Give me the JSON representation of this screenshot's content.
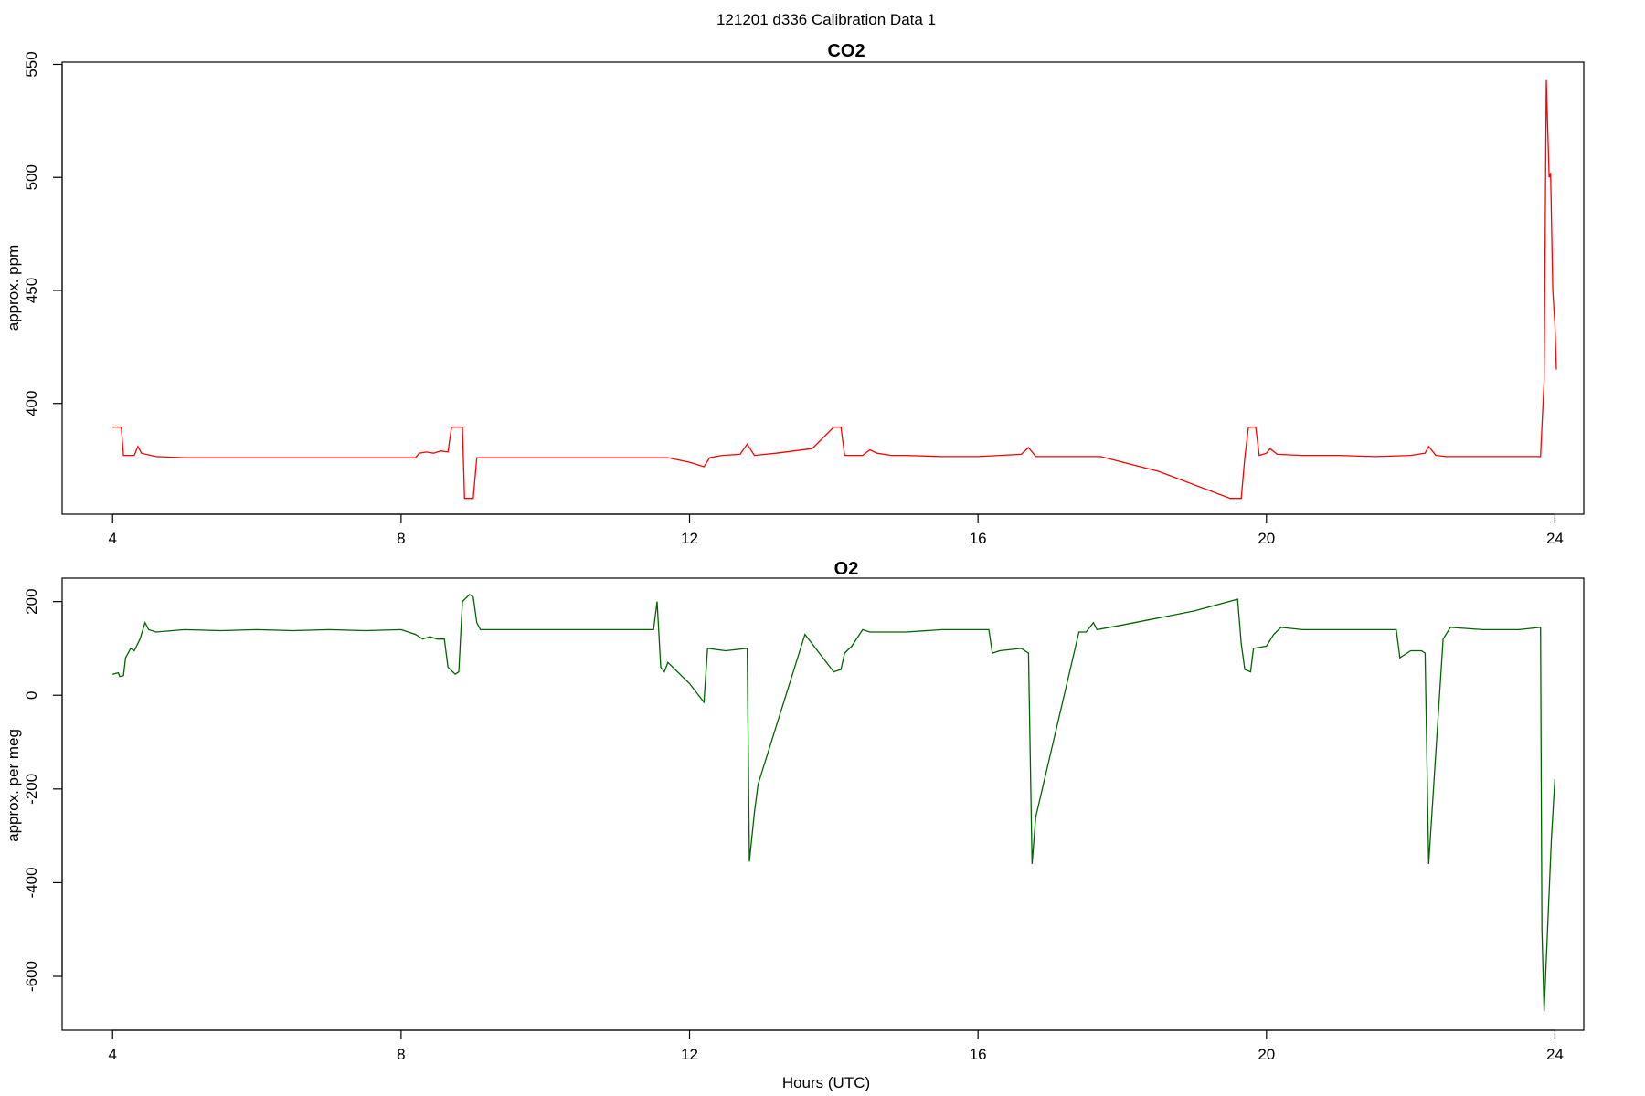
{
  "figure": {
    "title": "121201   d336   Calibration Data 1"
  },
  "chart_data": [
    {
      "type": "line",
      "title": "CO2",
      "xlabel": "",
      "ylabel": "approx. ppm",
      "xlim": [
        3.3,
        24.4
      ],
      "ylim": [
        351,
        551
      ],
      "xticks": [
        4,
        8,
        12,
        16,
        20,
        24
      ],
      "yticks": [
        400,
        450,
        500,
        550
      ],
      "grid": false,
      "series": [
        {
          "color": "#ff0000",
          "points": [
            [
              4.0,
              389.5
            ],
            [
              4.12,
              389.5
            ],
            [
              4.15,
              377
            ],
            [
              4.3,
              377
            ],
            [
              4.35,
              381
            ],
            [
              4.4,
              378
            ],
            [
              4.6,
              376.5
            ],
            [
              5.0,
              376
            ],
            [
              6.0,
              376
            ],
            [
              7.0,
              376
            ],
            [
              8.0,
              376
            ],
            [
              8.2,
              376
            ],
            [
              8.25,
              378
            ],
            [
              8.35,
              378.5
            ],
            [
              8.45,
              378
            ],
            [
              8.55,
              379
            ],
            [
              8.65,
              378.5
            ],
            [
              8.7,
              389.5
            ],
            [
              8.85,
              389.5
            ],
            [
              8.88,
              358
            ],
            [
              9.0,
              358
            ],
            [
              9.05,
              376
            ],
            [
              9.5,
              376
            ],
            [
              10.5,
              376
            ],
            [
              11.5,
              376
            ],
            [
              11.7,
              376
            ],
            [
              12.0,
              374
            ],
            [
              12.2,
              372
            ],
            [
              12.28,
              376
            ],
            [
              12.45,
              377
            ],
            [
              12.7,
              377.5
            ],
            [
              12.8,
              382
            ],
            [
              12.9,
              377
            ],
            [
              13.2,
              378
            ],
            [
              13.7,
              380
            ],
            [
              14.0,
              389.5
            ],
            [
              14.1,
              389.5
            ],
            [
              14.15,
              377
            ],
            [
              14.4,
              377
            ],
            [
              14.5,
              379.5
            ],
            [
              14.6,
              378
            ],
            [
              14.8,
              377
            ],
            [
              15.0,
              377
            ],
            [
              15.5,
              376.5
            ],
            [
              16.0,
              376.5
            ],
            [
              16.3,
              377
            ],
            [
              16.6,
              377.5
            ],
            [
              16.7,
              380.5
            ],
            [
              16.8,
              376.5
            ],
            [
              17.0,
              376.5
            ],
            [
              17.7,
              376.5
            ],
            [
              18.5,
              370
            ],
            [
              19.5,
              358
            ],
            [
              19.65,
              358
            ],
            [
              19.7,
              376
            ],
            [
              19.75,
              389.5
            ],
            [
              19.85,
              389.5
            ],
            [
              19.9,
              377
            ],
            [
              20.0,
              378
            ],
            [
              20.05,
              380
            ],
            [
              20.15,
              377.5
            ],
            [
              20.5,
              377
            ],
            [
              21.0,
              377
            ],
            [
              21.5,
              376.5
            ],
            [
              22.0,
              377
            ],
            [
              22.2,
              378
            ],
            [
              22.25,
              381
            ],
            [
              22.35,
              377
            ],
            [
              22.5,
              376.5
            ],
            [
              23.0,
              376.5
            ],
            [
              23.5,
              376.5
            ],
            [
              23.8,
              376.5
            ],
            [
              23.85,
              410
            ],
            [
              23.88,
              543
            ],
            [
              23.92,
              500
            ],
            [
              23.94,
              502
            ],
            [
              23.97,
              450
            ],
            [
              24.0,
              435
            ],
            [
              24.02,
              415
            ]
          ]
        }
      ]
    },
    {
      "type": "line",
      "title": "O2",
      "xlabel": "Hours (UTC)",
      "ylabel": "approx. per meg",
      "xlim": [
        3.3,
        24.4
      ],
      "ylim": [
        -715,
        250
      ],
      "xticks": [
        4,
        8,
        12,
        16,
        20,
        24
      ],
      "yticks": [
        200,
        0,
        -200,
        -400,
        -600
      ],
      "grid": false,
      "series": [
        {
          "color": "#006400",
          "points": [
            [
              4.0,
              45
            ],
            [
              4.08,
              48
            ],
            [
              4.1,
              40
            ],
            [
              4.15,
              42
            ],
            [
              4.18,
              80
            ],
            [
              4.25,
              100
            ],
            [
              4.3,
              95
            ],
            [
              4.38,
              120
            ],
            [
              4.45,
              155
            ],
            [
              4.5,
              140
            ],
            [
              4.6,
              135
            ],
            [
              5.0,
              140
            ],
            [
              5.5,
              138
            ],
            [
              6.0,
              140
            ],
            [
              6.5,
              138
            ],
            [
              7.0,
              140
            ],
            [
              7.5,
              138
            ],
            [
              8.0,
              140
            ],
            [
              8.2,
              130
            ],
            [
              8.3,
              120
            ],
            [
              8.4,
              125
            ],
            [
              8.5,
              120
            ],
            [
              8.6,
              120
            ],
            [
              8.65,
              60
            ],
            [
              8.75,
              45
            ],
            [
              8.8,
              50
            ],
            [
              8.85,
              200
            ],
            [
              8.95,
              215
            ],
            [
              9.0,
              210
            ],
            [
              9.05,
              155
            ],
            [
              9.1,
              140
            ],
            [
              9.5,
              140
            ],
            [
              10.0,
              140
            ],
            [
              10.5,
              140
            ],
            [
              11.0,
              140
            ],
            [
              11.5,
              140
            ],
            [
              11.55,
              200
            ],
            [
              11.6,
              60
            ],
            [
              11.65,
              50
            ],
            [
              11.7,
              70
            ],
            [
              12.0,
              25
            ],
            [
              12.2,
              -15
            ],
            [
              12.25,
              100
            ],
            [
              12.5,
              95
            ],
            [
              12.8,
              100
            ],
            [
              12.83,
              -355
            ],
            [
              12.9,
              -250
            ],
            [
              12.95,
              -190
            ],
            [
              13.6,
              130
            ],
            [
              14.0,
              50
            ],
            [
              14.1,
              55
            ],
            [
              14.15,
              90
            ],
            [
              14.25,
              105
            ],
            [
              14.4,
              140
            ],
            [
              14.5,
              135
            ],
            [
              15.0,
              135
            ],
            [
              15.5,
              140
            ],
            [
              16.0,
              140
            ],
            [
              16.15,
              140
            ],
            [
              16.2,
              90
            ],
            [
              16.3,
              95
            ],
            [
              16.6,
              100
            ],
            [
              16.7,
              90
            ],
            [
              16.75,
              -360
            ],
            [
              16.8,
              -260
            ],
            [
              17.4,
              135
            ],
            [
              17.5,
              135
            ],
            [
              17.6,
              155
            ],
            [
              17.65,
              140
            ],
            [
              18.0,
              150
            ],
            [
              19.0,
              180
            ],
            [
              19.6,
              205
            ],
            [
              19.65,
              110
            ],
            [
              19.7,
              55
            ],
            [
              19.78,
              50
            ],
            [
              19.82,
              100
            ],
            [
              20.0,
              105
            ],
            [
              20.1,
              130
            ],
            [
              20.2,
              145
            ],
            [
              20.5,
              140
            ],
            [
              21.0,
              140
            ],
            [
              21.5,
              140
            ],
            [
              21.8,
              140
            ],
            [
              21.85,
              80
            ],
            [
              22.0,
              95
            ],
            [
              22.15,
              95
            ],
            [
              22.2,
              90
            ],
            [
              22.25,
              -360
            ],
            [
              22.45,
              120
            ],
            [
              22.55,
              145
            ],
            [
              23.0,
              140
            ],
            [
              23.5,
              140
            ],
            [
              23.8,
              145
            ],
            [
              23.82,
              -500
            ],
            [
              23.85,
              -675
            ],
            [
              23.95,
              -310
            ],
            [
              24.0,
              -178
            ]
          ]
        }
      ]
    }
  ]
}
